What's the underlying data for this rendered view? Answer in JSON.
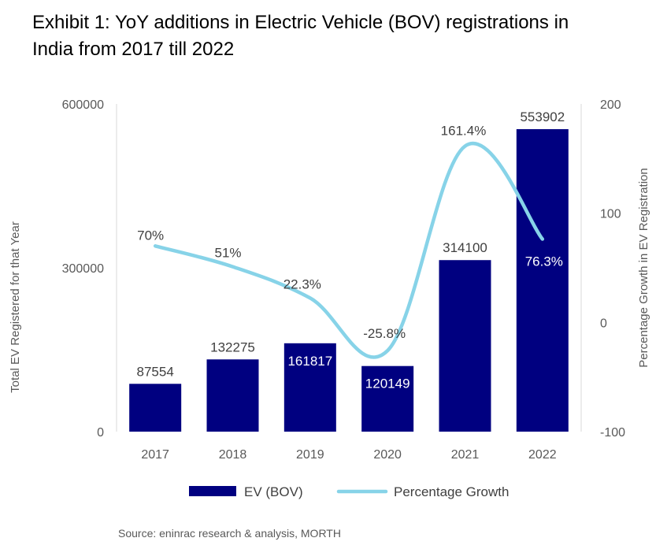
{
  "chart_data": {
    "type": "bar",
    "title": "Exhibit 1: YoY additions in Electric Vehicle (BOV) registrations in India from 2017 till 2022",
    "title_lines": [
      "Exhibit 1: YoY additions in Electric Vehicle (BOV) registrations in",
      "India from 2017 till 2022"
    ],
    "categories": [
      "2017",
      "2018",
      "2019",
      "2020",
      "2021",
      "2022"
    ],
    "series": [
      {
        "name": "EV (BOV)",
        "type": "bar",
        "axis": "left",
        "color": "#000080",
        "values": [
          87554,
          132275,
          161817,
          120149,
          314100,
          553902
        ],
        "labels": [
          "87554",
          "132275",
          "161817",
          "120149",
          "314100",
          "553902"
        ]
      },
      {
        "name": "Percentage Growth",
        "type": "line",
        "axis": "right",
        "color": "#87D3E8",
        "values": [
          70,
          51,
          22.3,
          -25.8,
          161.4,
          76.3
        ],
        "labels": [
          "70%",
          "51%",
          "22.3%",
          "-25.8%",
          "161.4%",
          "76.3%"
        ]
      }
    ],
    "ylabel": "Total EV Registered for that Year",
    "y2label": "Percentage Growth in EV Registration",
    "ylim": [
      0,
      600000
    ],
    "y2lim": [
      -100,
      200
    ],
    "yticks": [
      "0",
      "300000",
      "600000"
    ],
    "y2ticks": [
      "-100",
      "0",
      "100",
      "200"
    ],
    "legend": "bottom",
    "grid": false,
    "source": "Source: eninrac research & analysis, MORTH"
  }
}
